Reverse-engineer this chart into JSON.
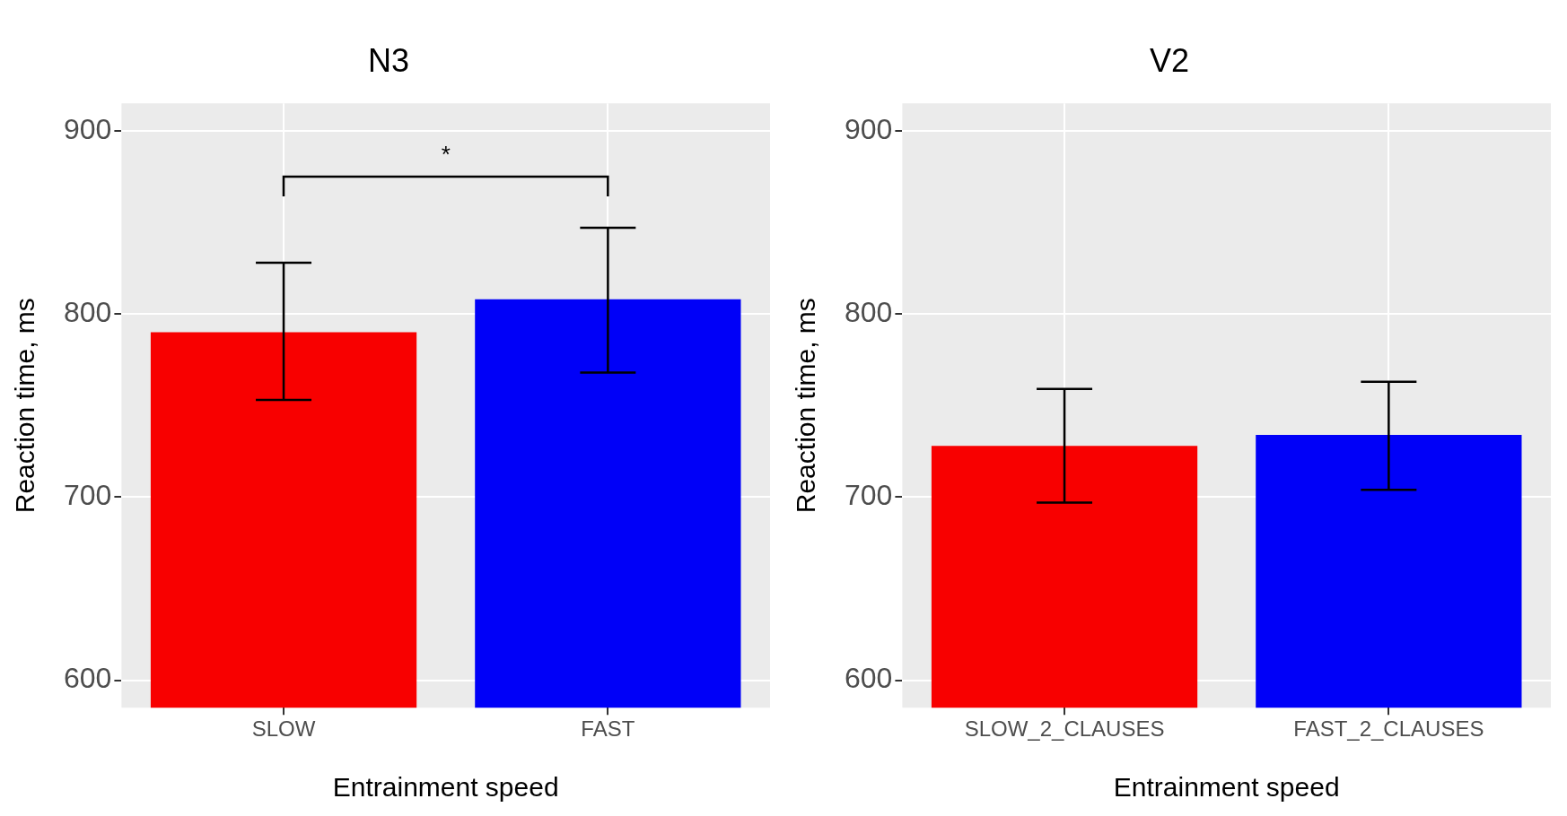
{
  "chart_data": [
    {
      "type": "bar",
      "title": "N3",
      "xlabel": "Entrainment speed",
      "ylabel": "Reaction time, ms",
      "categories": [
        "SLOW",
        "FAST"
      ],
      "values": [
        790,
        808
      ],
      "colors": [
        "#f80000",
        "#0000f8"
      ],
      "errors": [
        [
          753,
          828
        ],
        [
          768,
          847
        ]
      ],
      "ylim": [
        585,
        915
      ],
      "yticks": [
        600,
        700,
        800,
        900
      ],
      "grid": true,
      "legend": false,
      "annotations": [
        "*"
      ]
    },
    {
      "type": "bar",
      "title": "V2",
      "xlabel": "Entrainment speed",
      "ylabel": "Reaction time, ms",
      "categories": [
        "SLOW_2_CLAUSES",
        "FAST_2_CLAUSES"
      ],
      "values": [
        728,
        734
      ],
      "colors": [
        "#f80000",
        "#0000f8"
      ],
      "errors": [
        [
          697,
          759
        ],
        [
          704,
          763
        ]
      ],
      "ylim": [
        585,
        915
      ],
      "yticks": [
        600,
        700,
        800,
        900
      ],
      "grid": true,
      "legend": false
    }
  ]
}
